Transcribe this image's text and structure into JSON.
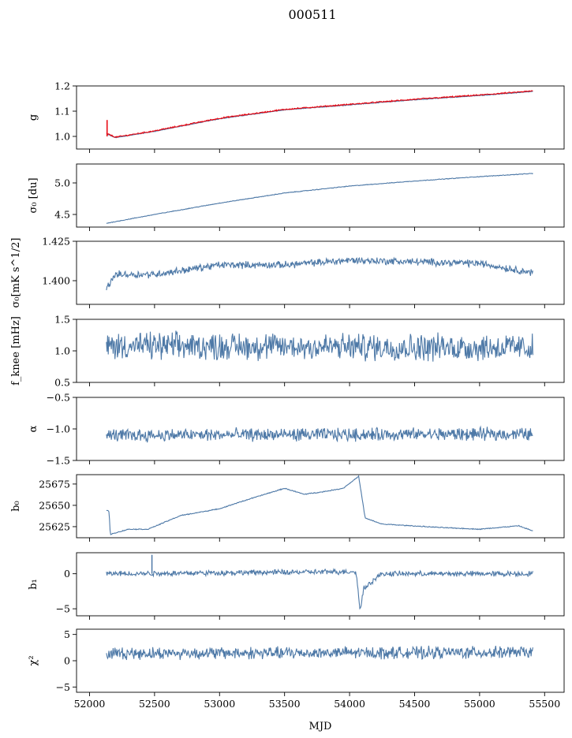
{
  "figure_title": "000511",
  "chart_data": {
    "type": "line",
    "title": "000511",
    "xlabel": "MJD",
    "xlim": [
      51900,
      55650
    ],
    "x_ticks": [
      52000,
      52500,
      53000,
      53500,
      54000,
      54500,
      55000,
      55500
    ],
    "x_tick_labels": [
      "52000",
      "52500",
      "53000",
      "53500",
      "54000",
      "54500",
      "55000",
      "55500"
    ],
    "x_range_data": [
      52130,
      55410
    ],
    "panels": [
      {
        "id": "g",
        "ylabel": "g",
        "ylim": [
          0.95,
          1.2
        ],
        "y_ticks": [
          1.0,
          1.1,
          1.2
        ],
        "y_tick_labels": [
          "1.0",
          "1.1",
          "1.2"
        ],
        "series": [
          {
            "color": "#4e79a7",
            "noise": 0.001,
            "points": [
              [
                52130,
                1.01
              ],
              [
                52200,
                0.995
              ],
              [
                52500,
                1.02
              ],
              [
                53000,
                1.07
              ],
              [
                53500,
                1.105
              ],
              [
                54000,
                1.125
              ],
              [
                54500,
                1.145
              ],
              [
                55000,
                1.162
              ],
              [
                55410,
                1.178
              ]
            ]
          },
          {
            "color": "#e8000b",
            "noise": 0.002,
            "points": [
              [
                52130,
                1.012
              ],
              [
                52200,
                0.997
              ],
              [
                52500,
                1.022
              ],
              [
                53000,
                1.072
              ],
              [
                53500,
                1.107
              ],
              [
                54000,
                1.127
              ],
              [
                54500,
                1.147
              ],
              [
                55000,
                1.164
              ],
              [
                55410,
                1.18
              ]
            ]
          }
        ],
        "spikes": [
          {
            "x": 52135,
            "y0": 1.0,
            "y1": 1.065,
            "color": "#e8000b"
          }
        ]
      },
      {
        "id": "sigma0",
        "ylabel": "σ₀ [du]",
        "ylim": [
          4.3,
          5.3
        ],
        "y_ticks": [
          4.5,
          5.0
        ],
        "y_tick_labels": [
          "4.5",
          "5.0"
        ],
        "series": [
          {
            "color": "#4e79a7",
            "noise": 0.004,
            "points": [
              [
                52130,
                4.36
              ],
              [
                52500,
                4.5
              ],
              [
                53000,
                4.68
              ],
              [
                53500,
                4.84
              ],
              [
                54000,
                4.95
              ],
              [
                54500,
                5.03
              ],
              [
                55000,
                5.1
              ],
              [
                55410,
                5.15
              ]
            ]
          }
        ]
      },
      {
        "id": "sigma0_mk",
        "ylabel": "σ₀[mK s^1/2]",
        "ylim": [
          1.385,
          1.425
        ],
        "y_ticks": [
          1.4,
          1.425
        ],
        "y_tick_labels": [
          "1.400",
          "1.425"
        ],
        "series": [
          {
            "color": "#4e79a7",
            "noise": 0.0018,
            "points": [
              [
                52130,
                1.395
              ],
              [
                52200,
                1.404
              ],
              [
                52500,
                1.404
              ],
              [
                53000,
                1.41
              ],
              [
                53500,
                1.41
              ],
              [
                54000,
                1.413
              ],
              [
                54500,
                1.412
              ],
              [
                55000,
                1.411
              ],
              [
                55410,
                1.405
              ]
            ]
          }
        ]
      },
      {
        "id": "fknee",
        "ylabel": "f_knee [mHz]",
        "ylim": [
          0.5,
          1.5
        ],
        "y_ticks": [
          0.5,
          1.0,
          1.5
        ],
        "y_tick_labels": [
          "0.5",
          "1.0",
          "1.5"
        ],
        "series": [
          {
            "color": "#4e79a7",
            "noise": 0.17,
            "points": [
              [
                52130,
                1.08
              ],
              [
                55410,
                1.05
              ]
            ]
          }
        ]
      },
      {
        "id": "alpha",
        "ylabel": "α",
        "ylim": [
          -1.5,
          -0.5
        ],
        "y_ticks": [
          -1.5,
          -1.0,
          -0.5
        ],
        "y_tick_labels": [
          "−1.5",
          "−1.0",
          "−0.5"
        ],
        "series": [
          {
            "color": "#4e79a7",
            "noise": 0.08,
            "points": [
              [
                52130,
                -1.1
              ],
              [
                55410,
                -1.08
              ]
            ]
          }
        ]
      },
      {
        "id": "b0",
        "ylabel": "b₀",
        "ylim": [
          25612,
          25686
        ],
        "y_ticks": [
          25625,
          25650,
          25675
        ],
        "y_tick_labels": [
          "25625",
          "25650",
          "25675"
        ],
        "series": [
          {
            "color": "#4e79a7",
            "noise": 0.4,
            "points": [
              [
                52130,
                25644
              ],
              [
                52150,
                25643
              ],
              [
                52160,
                25616
              ],
              [
                52300,
                25622
              ],
              [
                52450,
                25622
              ],
              [
                52700,
                25638
              ],
              [
                53000,
                25646
              ],
              [
                53200,
                25656
              ],
              [
                53500,
                25670
              ],
              [
                53650,
                25663
              ],
              [
                53800,
                25666
              ],
              [
                53950,
                25670
              ],
              [
                54070,
                25684
              ],
              [
                54120,
                25635
              ],
              [
                54250,
                25628
              ],
              [
                54700,
                25624
              ],
              [
                55000,
                25622
              ],
              [
                55300,
                25626
              ],
              [
                55410,
                25620
              ]
            ]
          }
        ]
      },
      {
        "id": "b1",
        "ylabel": "b₁",
        "ylim": [
          -6,
          3
        ],
        "y_ticks": [
          -5,
          0
        ],
        "y_tick_labels": [
          "−5",
          "0"
        ],
        "series": [
          {
            "color": "#4e79a7",
            "noise": 0.3,
            "points": [
              [
                52130,
                0.0
              ],
              [
                54050,
                0.3
              ],
              [
                54080,
                -5.2
              ],
              [
                54110,
                -2.0
              ],
              [
                54250,
                0.0
              ],
              [
                55410,
                0.0
              ]
            ]
          }
        ],
        "spikes": [
          {
            "x": 52480,
            "y0": 0.0,
            "y1": 2.7,
            "color": "#4e79a7"
          }
        ]
      },
      {
        "id": "chi2",
        "ylabel": "χ²",
        "ylim": [
          -6,
          6
        ],
        "y_ticks": [
          -5,
          0,
          5
        ],
        "y_tick_labels": [
          "−5",
          "0",
          "5"
        ],
        "series": [
          {
            "color": "#4e79a7",
            "noise": 0.9,
            "points": [
              [
                52130,
                1.4
              ],
              [
                55410,
                1.6
              ]
            ]
          }
        ]
      }
    ]
  }
}
